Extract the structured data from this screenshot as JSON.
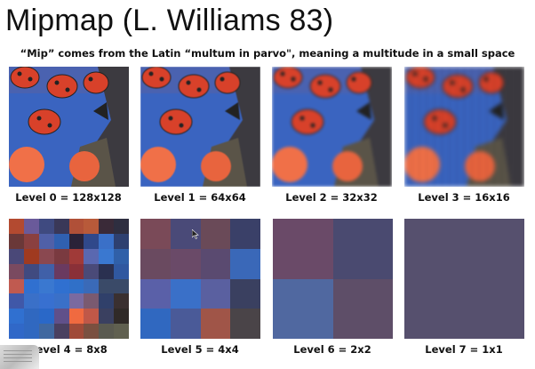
{
  "slide": {
    "title": "Mipmap (L. Williams 83)",
    "subtitle": "“Mip” comes from the Latin “multum in parvo\", meaning a multitude in a small space"
  },
  "levels": [
    {
      "label": "Level 0 = 128x128"
    },
    {
      "label": "Level 1 = 64x64"
    },
    {
      "label": "Level 2 = 32x32"
    },
    {
      "label": "Level 3 = 16x16"
    },
    {
      "label": "Level 4 = 8x8",
      "size": 8,
      "colors": [
        [
          "#b34a30",
          "#6a5a9a",
          "#3f4a80",
          "#3a3858",
          "#b05038",
          "#b85a3a",
          "#3a2a38",
          "#2e2e40"
        ],
        [
          "#6a3838",
          "#8a4040",
          "#5060a8",
          "#3060b0",
          "#2a2238",
          "#30488a",
          "#3a70c8",
          "#2e4070"
        ],
        [
          "#4a4878",
          "#a03a20",
          "#8a4850",
          "#7a3a40",
          "#a03a38",
          "#5a68b0",
          "#3a78d0",
          "#3060a8"
        ],
        [
          "#7a4a60",
          "#404a80",
          "#4060a8",
          "#6a3a60",
          "#8a3038",
          "#4a4a78",
          "#2a3050",
          "#3058a0"
        ],
        [
          "#c05a50",
          "#3070d0",
          "#3a78d0",
          "#3070d0",
          "#3070c8",
          "#3a6ab8",
          "#3a4a68",
          "#3a4a68"
        ],
        [
          "#4058a8",
          "#3a70c8",
          "#3870d0",
          "#3a70c8",
          "#7a6aa0",
          "#7a5a70",
          "#30406a",
          "#3a3030"
        ],
        [
          "#3070d0",
          "#3068c0",
          "#2a68c8",
          "#60508a",
          "#f06a40",
          "#c05848",
          "#3a4060",
          "#302a28"
        ],
        [
          "#3068c8",
          "#3068c0",
          "#4068a0",
          "#4a4060",
          "#a04a38",
          "#7a5040",
          "#5a5a50",
          "#606050"
        ]
      ]
    },
    {
      "label": "Level 5 = 4x4",
      "size": 4,
      "colors": [
        [
          "#7a4a58",
          "#4a4a78",
          "#6a4a58",
          "#3a4068"
        ],
        [
          "#6a4a60",
          "#6a4a68",
          "#5a4a70",
          "#3a68b8"
        ],
        [
          "#5a60a8",
          "#3a70c8",
          "#5a60a0",
          "#3a4060"
        ],
        [
          "#3068c0",
          "#4a5a98",
          "#a05548",
          "#4a4448"
        ]
      ]
    },
    {
      "label": "Level 6 = 2x2",
      "size": 2,
      "colors": [
        [
          "#6a4a68",
          "#4a4a70"
        ],
        [
          "#5068a0",
          "#5e4e68"
        ]
      ]
    },
    {
      "label": "Level 7 = 1x1",
      "size": 1,
      "colors": [
        [
          "#56506e"
        ]
      ]
    }
  ]
}
